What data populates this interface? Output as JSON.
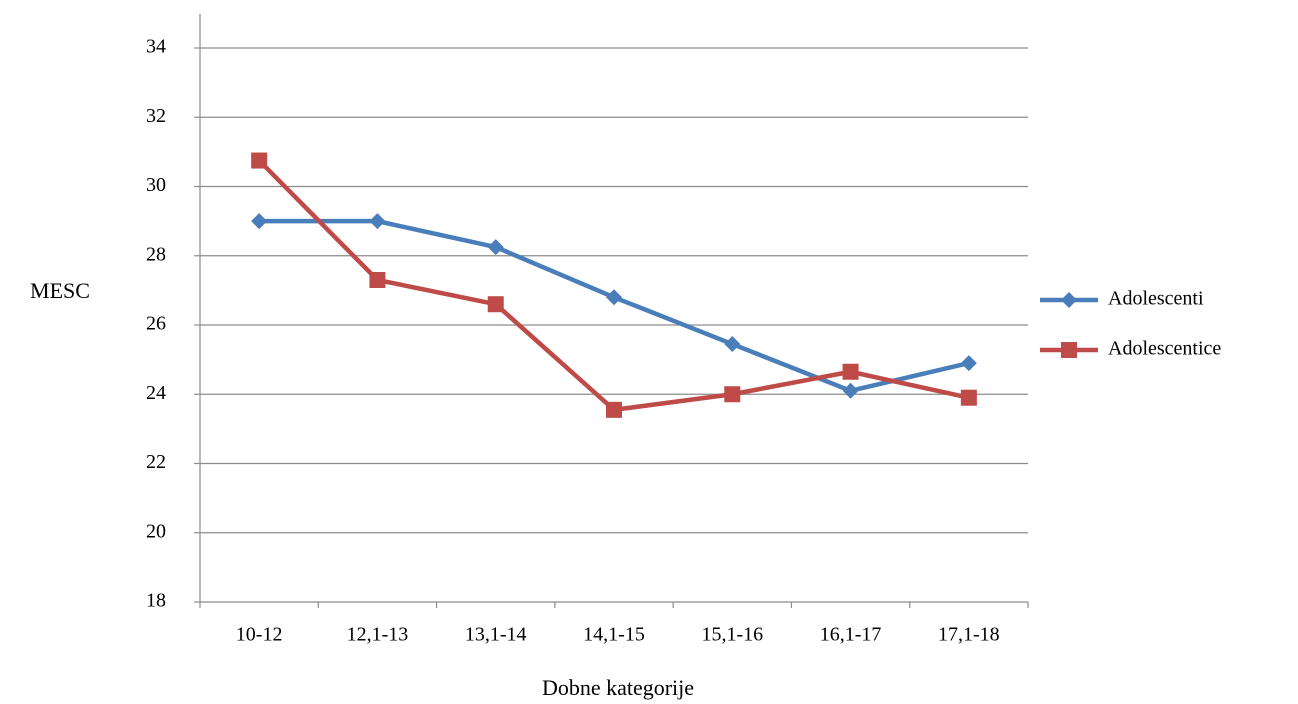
{
  "chart_data": {
    "type": "line",
    "title": "",
    "xlabel": "Dobne kategorije",
    "ylabel": "MESC",
    "categories": [
      "10-12",
      "12,1-13",
      "13,1-14",
      "14,1-15",
      "15,1-16",
      "16,1-17",
      "17,1-18"
    ],
    "ylim": [
      18,
      34
    ],
    "yticks": [
      18,
      20,
      22,
      24,
      26,
      28,
      30,
      32,
      34
    ],
    "grid": true,
    "legend_position": "right",
    "series": [
      {
        "name": "Adolescenti",
        "color": "#4A7EBB",
        "marker": "diamond",
        "values": [
          29.0,
          29.0,
          28.25,
          26.8,
          25.45,
          24.1,
          24.9
        ]
      },
      {
        "name": "Adolescentice",
        "color": "#BE4B48",
        "marker": "square",
        "values": [
          30.75,
          27.3,
          26.6,
          23.55,
          24.0,
          24.65,
          23.9
        ]
      }
    ]
  }
}
